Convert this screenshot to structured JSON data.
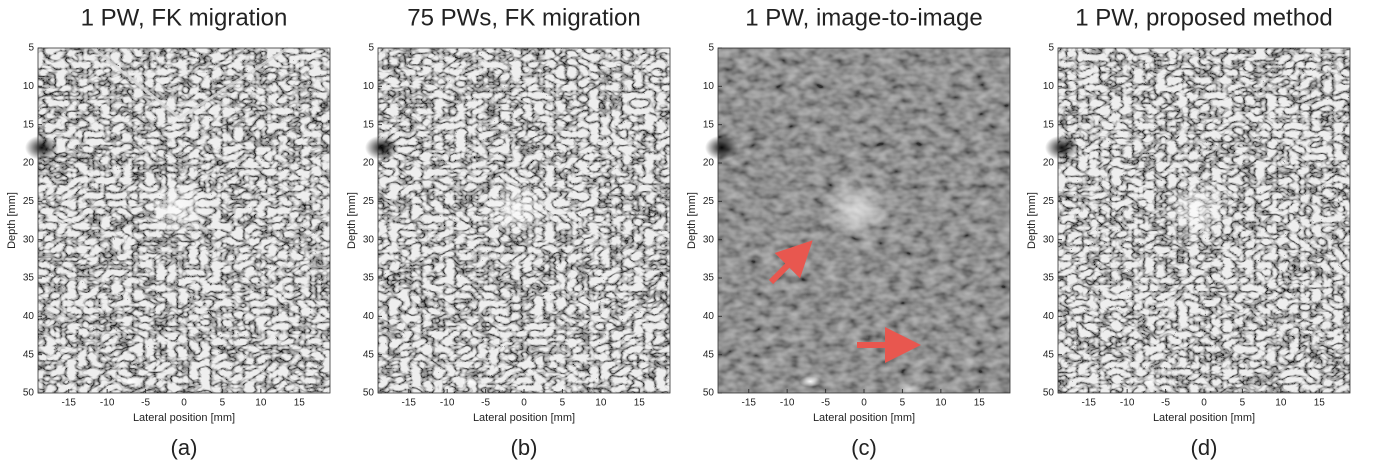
{
  "panels": [
    {
      "title": "1 PW, FK migration",
      "caption": "(a)",
      "xlabel": "Lateral position [mm]",
      "ylabel": "Depth [mm]",
      "xlim": [
        -19,
        19
      ],
      "ylim": [
        5,
        50
      ],
      "xticks": [
        -15,
        -10,
        -5,
        0,
        5,
        10,
        15
      ],
      "yticks": [
        5,
        10,
        15,
        20,
        25,
        30,
        35,
        40,
        45,
        50
      ]
    },
    {
      "title": "75 PWs, FK migration",
      "caption": "(b)",
      "xlabel": "Lateral position [mm]",
      "ylabel": "Depth [mm]",
      "xlim": [
        -19,
        19
      ],
      "ylim": [
        5,
        50
      ],
      "xticks": [
        -15,
        -10,
        -5,
        0,
        5,
        10,
        15
      ],
      "yticks": [
        5,
        10,
        15,
        20,
        25,
        30,
        35,
        40,
        45,
        50
      ]
    },
    {
      "title": "1 PW, image-to-image",
      "caption": "(c)",
      "xlabel": "Lateral position [mm]",
      "ylabel": "Depth [mm]",
      "xlim": [
        -19,
        19
      ],
      "ylim": [
        5,
        50
      ],
      "xticks": [
        -15,
        -10,
        -5,
        0,
        5,
        10,
        15
      ],
      "yticks": [
        5,
        10,
        15,
        20,
        25,
        30,
        35,
        40,
        45,
        50
      ]
    },
    {
      "title": "1 PW, proposed method",
      "caption": "(d)",
      "xlabel": "Lateral position [mm]",
      "ylabel": "Depth [mm]",
      "xlim": [
        -19,
        19
      ],
      "ylim": [
        5,
        50
      ],
      "xticks": [
        -15,
        -10,
        -5,
        0,
        5,
        10,
        15
      ],
      "yticks": [
        5,
        10,
        15,
        20,
        25,
        30,
        35,
        40,
        45,
        50
      ]
    }
  ]
}
